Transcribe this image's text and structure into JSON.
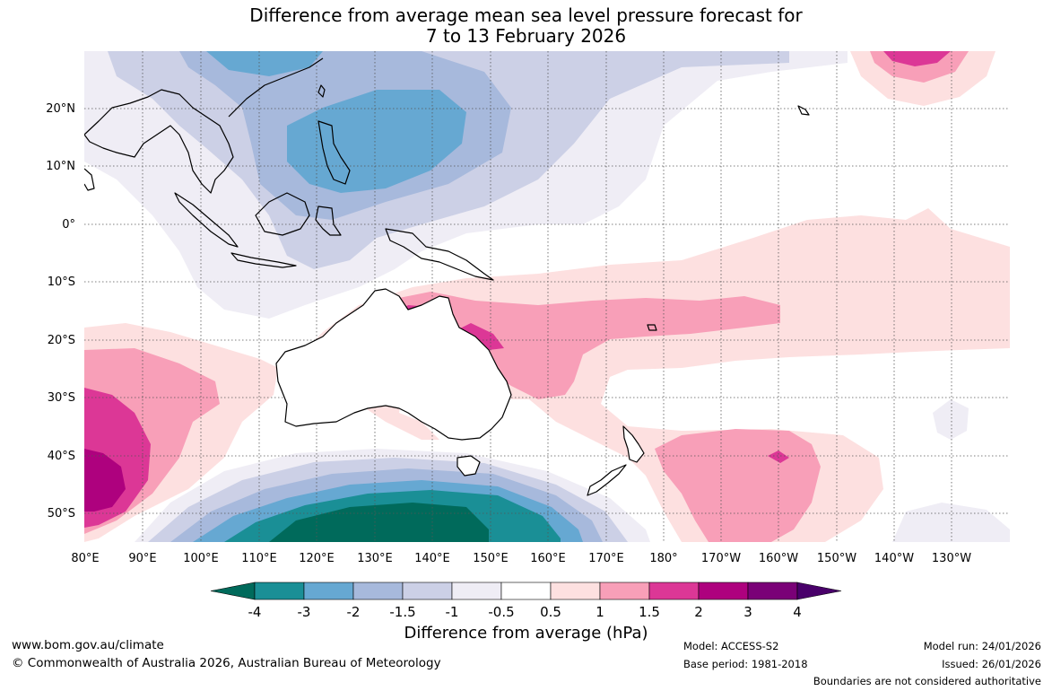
{
  "title": {
    "line1": "Difference from average mean sea level pressure forecast for",
    "line2": "7 to 13 February 2026"
  },
  "map": {
    "region": "Australia and surrounding oceans",
    "lon_ticks": [
      "80°E",
      "90°E",
      "100°E",
      "110°E",
      "120°E",
      "130°E",
      "140°E",
      "150°E",
      "160°E",
      "170°E",
      "180°",
      "170°W",
      "160°W",
      "150°W",
      "140°W",
      "130°W"
    ],
    "lat_ticks": [
      "20°N",
      "10°N",
      "0°",
      "10°S",
      "20°S",
      "30°S",
      "40°S",
      "50°S"
    ],
    "gridlines": true,
    "coastline_color": "#000000",
    "border_color": "#888888"
  },
  "colorbar": {
    "title": "Difference from average (hPa)",
    "tick_labels": [
      "-4",
      "-3",
      "-2",
      "-1.5",
      "-1",
      "-0.5",
      "0.5",
      "1",
      "1.5",
      "2",
      "3",
      "4"
    ],
    "colors": [
      "#006a5b",
      "#1a8f96",
      "#66a8d2",
      "#a7b9dc",
      "#ccd0e6",
      "#efedf5",
      "#ffffff",
      "#fde0e0",
      "#f89fb8",
      "#dc3796",
      "#ae017e",
      "#7a0177",
      "#49006a"
    ]
  },
  "footer": {
    "website": "www.bom.gov.au/climate",
    "copyright": "© Commonwealth of Australia 2026, Australian Bureau of Meteorology",
    "model": "Model: ACCESS-S2",
    "base_period": "Base period: 1981-2018",
    "model_run": "Model run: 24/01/2026",
    "issued": "Issued: 26/01/2026",
    "disclaimer": "Boundaries are not considered authoritative"
  }
}
